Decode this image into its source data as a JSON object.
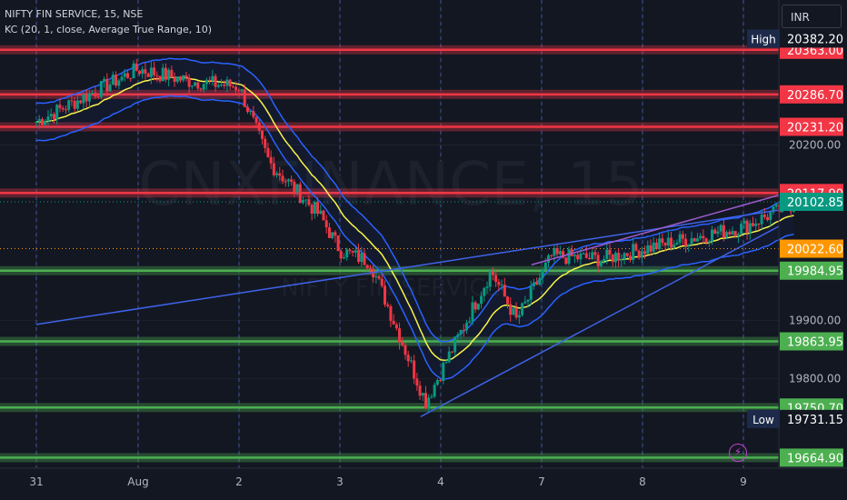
{
  "header": {
    "symbol_line": "NIFTY FIN SERVICE, 15, NSE",
    "indicator_line": "KC (20, 1, close, Average True Range, 10)",
    "currency": "INR"
  },
  "watermark": {
    "main": "CNXFINANCE, 15",
    "sub": "NIFTY FIN SERVICE"
  },
  "controls": {
    "alert_icon": "lightning-icon"
  },
  "colors": {
    "background": "#131722",
    "resistance": "#f23645",
    "support": "#4caf50",
    "keltner_band": "#2962ff",
    "keltner_basis": "#f7f44a",
    "trendline": "#3f63e8",
    "wedge_upper": "#9c5ccf",
    "candle_up": "#089981",
    "candle_down": "#f23645",
    "last_price": "#089981",
    "prev_close": "#ff9800",
    "axis_text": "#b2b5be"
  },
  "chart_data": {
    "type": "candlestick",
    "title": "NIFTY FIN SERVICE, 15, NSE",
    "indicator": "KC (20, 1, close, Average True Range, 10)",
    "x_ticks": [
      "31",
      "Aug",
      "2",
      "3",
      "4",
      "7",
      "8",
      "9"
    ],
    "y_axis": {
      "range": [
        19650,
        20400
      ],
      "ticks": [
        {
          "value": 20200,
          "label": "20200.00"
        },
        {
          "value": 19900,
          "label": "19900.00"
        },
        {
          "value": 19800,
          "label": "19800.00"
        }
      ]
    },
    "price_markers": [
      {
        "kind": "high",
        "tag": "High",
        "value": 20382.2,
        "label": "20382.20"
      },
      {
        "kind": "low",
        "tag": "Low",
        "value": 19731.15,
        "label": "19731.15"
      },
      {
        "kind": "last",
        "value": 20102.85,
        "label": "20102.85"
      },
      {
        "kind": "prev",
        "value": 20022.6,
        "label": "20022.60"
      }
    ],
    "horizontal_levels": [
      {
        "value": 20363.0,
        "label": "20363.00",
        "type": "resistance"
      },
      {
        "value": 20286.7,
        "label": "20286.70",
        "type": "resistance"
      },
      {
        "value": 20231.2,
        "label": "20231.20",
        "type": "resistance"
      },
      {
        "value": 20117.9,
        "label": "20117.90",
        "type": "resistance"
      },
      {
        "value": 19984.95,
        "label": "19984.95",
        "type": "support"
      },
      {
        "value": 19863.95,
        "label": "19863.95",
        "type": "support"
      },
      {
        "value": 19750.7,
        "label": "19750.70",
        "type": "support"
      },
      {
        "value": 19664.9,
        "label": "19664.90",
        "type": "support"
      }
    ],
    "session_boundaries": [
      "31",
      "Aug",
      "2",
      "3",
      "4",
      "7",
      "8",
      "9"
    ],
    "trendlines": [
      {
        "name": "rising support (long)",
        "from": {
          "session": 0.0,
          "price": 19893
        },
        "to": {
          "session": 7.55,
          "price": 20094
        }
      },
      {
        "name": "wedge lower",
        "from": {
          "session": 3.8,
          "price": 19735
        },
        "to": {
          "session": 7.55,
          "price": 20079
        }
      },
      {
        "name": "wedge upper",
        "from": {
          "session": 4.9,
          "price": 19995
        },
        "to": {
          "session": 7.55,
          "price": 20124
        }
      }
    ],
    "series": [
      {
        "name": "price",
        "sessions": [
          "31",
          "Aug",
          "2",
          "3",
          "4",
          "7",
          "8"
        ],
        "anchors": [
          {
            "s": 0.0,
            "close": 20240
          },
          {
            "s": 0.5,
            "close": 20285
          },
          {
            "s": 1.0,
            "close": 20330
          },
          {
            "s": 1.5,
            "close": 20310
          },
          {
            "s": 2.0,
            "close": 20300
          },
          {
            "s": 2.3,
            "close": 20170
          },
          {
            "s": 2.8,
            "close": 20080
          },
          {
            "s": 3.0,
            "close": 20020
          },
          {
            "s": 3.3,
            "close": 20000
          },
          {
            "s": 3.6,
            "close": 19870
          },
          {
            "s": 3.85,
            "close": 19760
          },
          {
            "s": 4.2,
            "close": 19880
          },
          {
            "s": 4.5,
            "close": 19985
          },
          {
            "s": 4.75,
            "close": 19900
          },
          {
            "s": 5.1,
            "close": 20010
          },
          {
            "s": 5.6,
            "close": 20005
          },
          {
            "s": 6.2,
            "close": 20030
          },
          {
            "s": 7.0,
            "close": 20060
          },
          {
            "s": 7.5,
            "close": 20100
          }
        ]
      }
    ],
    "grid": true,
    "legend": "top-left"
  }
}
